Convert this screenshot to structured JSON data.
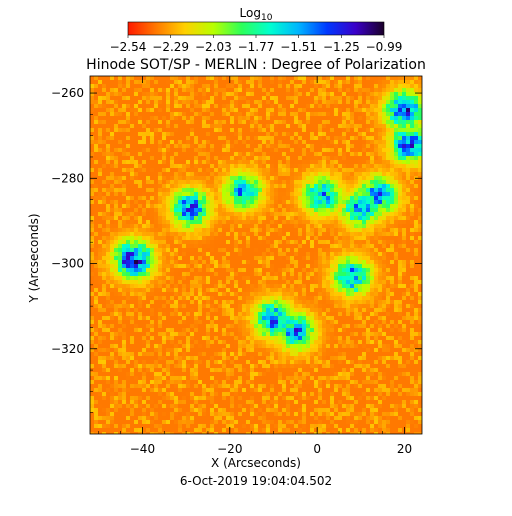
{
  "chart_data": {
    "type": "heatmap",
    "title": "Hinode SOT/SP - MERLIN : Degree of Polarization",
    "xlabel": "X (Arcseconds)",
    "ylabel": "Y (Arcseconds)",
    "xlim": [
      -52,
      24
    ],
    "ylim": [
      -340,
      -256
    ],
    "x_ticks": [
      -40,
      -20,
      0,
      20
    ],
    "x_tick_labels": [
      "−40",
      "−20",
      "0",
      "20"
    ],
    "y_ticks": [
      -260,
      -280,
      -300,
      -320
    ],
    "y_tick_labels": [
      "−260",
      "−280",
      "−300",
      "−320"
    ],
    "grid": false,
    "colorbar": {
      "title": "Log",
      "title_subscript": "10",
      "range": [
        -2.54,
        -0.99
      ],
      "tick_labels": [
        "−2.54",
        "−2.29",
        "−2.03",
        "−1.77",
        "−1.51",
        "−1.25",
        "−0.99"
      ],
      "colormap": [
        "#ff1a00",
        "#ff7a00",
        "#ffd000",
        "#b8ff00",
        "#2cff5a",
        "#00ffd0",
        "#00b4ff",
        "#0038ff",
        "#3a00c8",
        "#1a0028"
      ]
    },
    "field_mean": -2.37,
    "strong_regions": [
      {
        "x": -42,
        "y": -299,
        "peak": -0.99
      },
      {
        "x": -29,
        "y": -287,
        "peak": -1.2
      },
      {
        "x": -17,
        "y": -283,
        "peak": -1.4
      },
      {
        "x": -10,
        "y": -313,
        "peak": -1.25
      },
      {
        "x": -5,
        "y": -316,
        "peak": -1.3
      },
      {
        "x": 1,
        "y": -284,
        "peak": -1.35
      },
      {
        "x": 10,
        "y": -287,
        "peak": -1.3
      },
      {
        "x": 14,
        "y": -284,
        "peak": -1.3
      },
      {
        "x": 8,
        "y": -303,
        "peak": -1.3
      },
      {
        "x": 20,
        "y": -264,
        "peak": -1.1
      },
      {
        "x": 21,
        "y": -272,
        "peak": -1.2
      }
    ],
    "timestamp": "6-Oct-2019 19:04:04.502"
  }
}
